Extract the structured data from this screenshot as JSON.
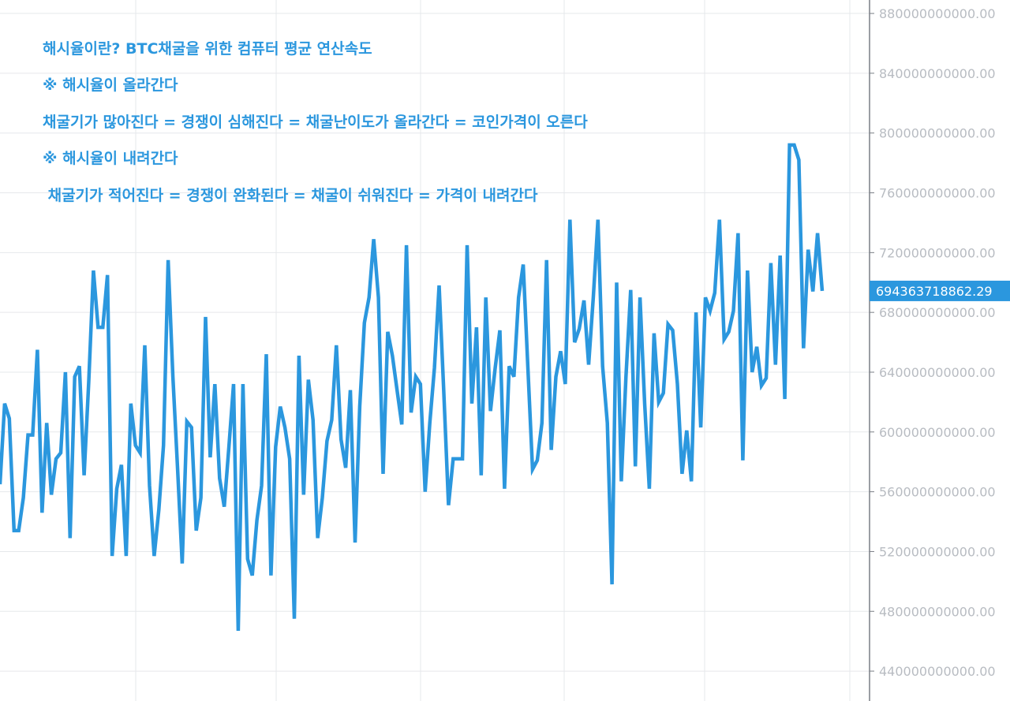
{
  "colors": {
    "line": "#2b97de",
    "annotation": "#2b97de",
    "grid": "#e6e8eb",
    "axis": "#7a7e85",
    "tick_label": "#b8bcc2",
    "price_tag_bg": "#2b97de",
    "price_tag_text": "#ffffff"
  },
  "annotations": [
    "해시율이란? BTC채굴을 위한 컴퓨터 평균 연산속도",
    "※ 해시율이 올라간다",
    "채굴기가 많아진다 = 경쟁이 심해진다 = 채굴난이도가 올라간다 = 코인가격이 오른다",
    "※ 해시율이 내려간다",
    " 채굴기가 적어진다 = 경쟁이 완화된다 = 채굴이 쉬워진다 = 가격이 내려간다"
  ],
  "chart_data": {
    "type": "line",
    "title": "",
    "xlabel": "",
    "ylabel": "",
    "axis_position": "right",
    "grid": true,
    "ylim": [
      420000000000,
      889000000000
    ],
    "yticks": [
      440000000000,
      480000000000,
      520000000000,
      560000000000,
      600000000000,
      640000000000,
      680000000000,
      720000000000,
      760000000000,
      800000000000,
      840000000000,
      880000000000
    ],
    "ytick_labels": [
      "440000000000.00",
      "480000000000.00",
      "520000000000.00",
      "560000000000.00",
      "600000000000.00",
      "640000000000.00",
      "680000000000.00",
      "720000000000.00",
      "760000000000.00",
      "800000000000.00",
      "840000000000.00",
      "880000000000.00"
    ],
    "last_value": 694363718862.29,
    "last_value_label": "694363718862.29",
    "series": [
      {
        "values": [
          565000000000.0,
          619000000000.0,
          609000000000.0,
          534000000000.0,
          534000000000.0,
          556000000000.0,
          598000000000.0,
          598000000000.0,
          655000000000.0,
          546000000000.0,
          606000000000.0,
          558000000000.0,
          582000000000.0,
          586000000000.0,
          640000000000.0,
          529000000000.0,
          637000000000.0,
          644000000000.0,
          571000000000.0,
          634000000000.0,
          708000000000.0,
          670000000000.0,
          670000000000.0,
          705000000000.0,
          517000000000.0,
          562000000000.0,
          578000000000.0,
          517000000000.0,
          619000000000.0,
          591000000000.0,
          586000000000.0,
          658000000000.0,
          564000000000.0,
          517000000000.0,
          548000000000.0,
          591000000000.0,
          715000000000.0,
          637000000000.0,
          576000000000.0,
          512000000000.0,
          607000000000.0,
          603000000000.0,
          534000000000.0,
          556000000000.0,
          677000000000.0,
          583000000000.0,
          632000000000.0,
          569000000000.0,
          550000000000.0,
          590000000000.0,
          632000000000.0,
          467000000000.0,
          632000000000.0,
          515000000000.0,
          504000000000.0,
          541000000000.0,
          564000000000.0,
          652000000000.0,
          504000000000.0,
          590000000000.0,
          617000000000.0,
          603000000000.0,
          582000000000.0,
          475000000000.0,
          651000000000.0,
          558000000000.0,
          635000000000.0,
          608000000000.0,
          529000000000.0,
          556000000000.0,
          594000000000.0,
          608000000000.0,
          658000000000.0,
          595000000000.0,
          576000000000.0,
          628000000000.0,
          526000000000.0,
          617000000000.0,
          673000000000.0,
          690000000000.0,
          729000000000.0,
          690000000000.0,
          572000000000.0,
          667000000000.0,
          651000000000.0,
          628000000000.0,
          605000000000.0,
          725000000000.0,
          613000000000.0,
          637000000000.0,
          632000000000.0,
          560000000000.0,
          606000000000.0,
          643000000000.0,
          698000000000.0,
          627000000000.0,
          551000000000.0,
          582000000000.0,
          582000000000.0,
          582000000000.0,
          725000000000.0,
          619000000000.0,
          670000000000.0,
          571000000000.0,
          690000000000.0,
          614000000000.0,
          643000000000.0,
          668000000000.0,
          562000000000.0,
          644000000000.0,
          637000000000.0,
          690000000000.0,
          712000000000.0,
          643000000000.0,
          575000000000.0,
          581000000000.0,
          606000000000.0,
          715000000000.0,
          588000000000.0,
          637000000000.0,
          654000000000.0,
          632000000000.0,
          742000000000.0,
          660000000000.0,
          669000000000.0,
          688000000000.0,
          645000000000.0,
          690000000000.0,
          742000000000.0,
          644000000000.0,
          606000000000.0,
          498000000000.0,
          700000000000.0,
          567000000000.0,
          637000000000.0,
          695000000000.0,
          577000000000.0,
          690000000000.0,
          619000000000.0,
          562000000000.0,
          666000000000.0,
          620000000000.0,
          626000000000.0,
          672000000000.0,
          668000000000.0,
          632000000000.0,
          572000000000.0,
          601000000000.0,
          567000000000.0,
          680000000000.0,
          603000000000.0,
          690000000000.0,
          681000000000.0,
          693000000000.0,
          742000000000.0,
          662000000000.0,
          667000000000.0,
          681000000000.0,
          733000000000.0,
          581000000000.0,
          708000000000.0,
          640000000000.0,
          657000000000.0,
          631000000000.0,
          636000000000.0,
          713000000000.0,
          645000000000.0,
          718000000000.0,
          622000000000.0,
          792000000000.0,
          792000000000.0,
          782000000000.0,
          656000000000.0,
          722000000000.0,
          694000000000.0,
          733000000000.0,
          694363718862.29
        ]
      }
    ]
  }
}
